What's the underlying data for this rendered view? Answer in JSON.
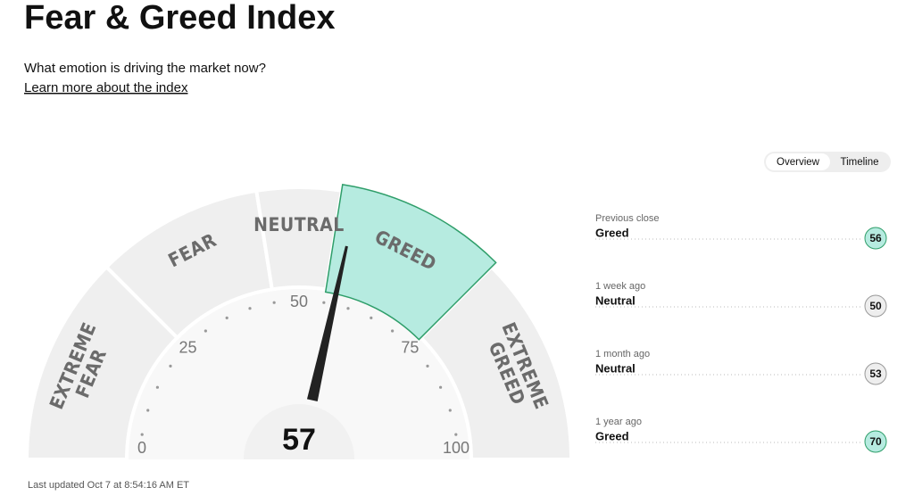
{
  "header": {
    "title": "Fear & Greed Index",
    "subtitle": "What emotion is driving the market now?",
    "link": "Learn more about the index"
  },
  "tabs": [
    "Overview",
    "Timeline"
  ],
  "gauge": {
    "value": 57,
    "range": [
      0,
      100
    ],
    "ticks": [
      0,
      25,
      50,
      75,
      100
    ],
    "zones": [
      {
        "lines": [
          "EXTREME",
          "FEAR"
        ],
        "range": [
          0,
          25
        ]
      },
      {
        "lines": [
          "FEAR"
        ],
        "range": [
          25,
          45
        ]
      },
      {
        "lines": [
          "NEUTRAL"
        ],
        "range": [
          45,
          55
        ]
      },
      {
        "lines": [
          "GREED"
        ],
        "range": [
          55,
          75
        ]
      },
      {
        "lines": [
          "EXTREME",
          "GREED"
        ],
        "range": [
          75,
          100
        ]
      }
    ]
  },
  "updated": "Last updated Oct 7 at 8:54:16 AM ET",
  "history": [
    {
      "label": "Previous close",
      "rating": "Greed",
      "value": 56
    },
    {
      "label": "1 week ago",
      "rating": "Neutral",
      "value": 50
    },
    {
      "label": "1 month ago",
      "rating": "Neutral",
      "value": 53
    },
    {
      "label": "1 year ago",
      "rating": "Greed",
      "value": 70
    }
  ]
}
